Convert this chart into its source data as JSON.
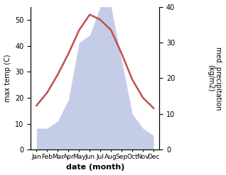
{
  "months": [
    "Jan",
    "Feb",
    "Mar",
    "Apr",
    "May",
    "Jun",
    "Jul",
    "Aug",
    "Sep",
    "Oct",
    "Nov",
    "Dec"
  ],
  "temperature": [
    17,
    22,
    29,
    37,
    46,
    52,
    50,
    46,
    37,
    27,
    20,
    16
  ],
  "precipitation": [
    6,
    6,
    8,
    14,
    30,
    32,
    40,
    40,
    25,
    10,
    6,
    4
  ],
  "temp_color": "#c0504d",
  "precip_color": "#c5cce8",
  "left_ylabel": "max temp (C)",
  "right_ylabel": "med. precipitation\n(kg/m2)",
  "xlabel": "date (month)",
  "left_ylim": [
    0,
    55
  ],
  "right_ylim": [
    0,
    40
  ],
  "left_yticks": [
    0,
    10,
    20,
    30,
    40,
    50
  ],
  "right_yticks": [
    0,
    10,
    20,
    30,
    40
  ],
  "bg_color": "#ffffff",
  "temp_linewidth": 1.8,
  "xlabel_fontsize": 8,
  "ylabel_fontsize": 7,
  "tick_fontsize": 7,
  "month_fontsize": 6.5
}
